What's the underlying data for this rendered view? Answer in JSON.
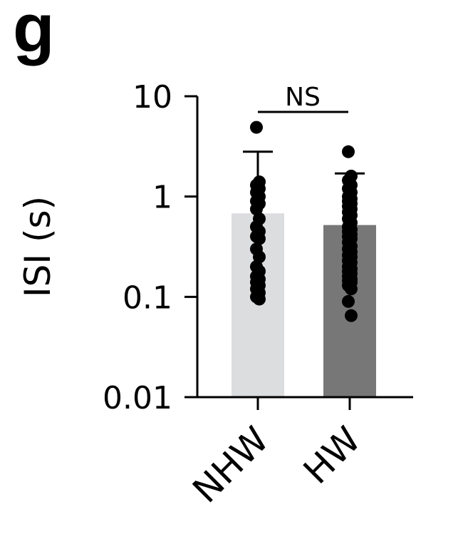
{
  "panel_label": "g",
  "chart_data": {
    "type": "bar",
    "y_scale": "log",
    "ylim": [
      0.01,
      10
    ],
    "ylabel": "ISI (s)",
    "xlabel": "",
    "yticks": [
      {
        "value": 10,
        "label": "10"
      },
      {
        "value": 1,
        "label": "1"
      },
      {
        "value": 0.1,
        "label": "0.1"
      },
      {
        "value": 0.01,
        "label": "0.01"
      }
    ],
    "categories": [
      "NHW",
      "HW"
    ],
    "values": [
      0.68,
      0.52
    ],
    "error_upper": [
      2.8,
      1.7
    ],
    "bar_colors": [
      "#dcdddf",
      "#777777"
    ],
    "points": [
      [
        4.9,
        1.4,
        1.3,
        1.2,
        1.1,
        1.0,
        0.9,
        0.85,
        0.75,
        0.6,
        0.5,
        0.45,
        0.4,
        0.38,
        0.3,
        0.25,
        0.2,
        0.18,
        0.16,
        0.15,
        0.14,
        0.13,
        0.12,
        0.11,
        0.1,
        0.095
      ],
      [
        2.8,
        1.6,
        1.45,
        1.3,
        1.2,
        1.1,
        1.0,
        0.95,
        0.9,
        0.85,
        0.8,
        0.75,
        0.7,
        0.65,
        0.6,
        0.55,
        0.5,
        0.47,
        0.45,
        0.42,
        0.4,
        0.38,
        0.35,
        0.32,
        0.3,
        0.28,
        0.26,
        0.25,
        0.23,
        0.22,
        0.2,
        0.19,
        0.18,
        0.17,
        0.16,
        0.15,
        0.145,
        0.14,
        0.13,
        0.12,
        0.09,
        0.065
      ]
    ],
    "significance": {
      "label": "NS",
      "between": [
        0,
        1
      ]
    }
  }
}
